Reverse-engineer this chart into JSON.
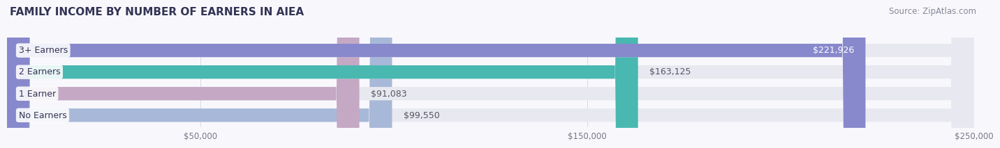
{
  "title": "FAMILY INCOME BY NUMBER OF EARNERS IN AIEA",
  "source": "Source: ZipAtlas.com",
  "categories": [
    "No Earners",
    "1 Earner",
    "2 Earners",
    "3+ Earners"
  ],
  "values": [
    99550,
    91083,
    163125,
    221926
  ],
  "bar_colors": [
    "#a8b8d8",
    "#c4a8c4",
    "#48b8b0",
    "#8888cc"
  ],
  "bar_bg_color": "#e8e8f0",
  "label_colors": [
    "#555566",
    "#555566",
    "#555566",
    "#ffffff"
  ],
  "xlim": [
    0,
    250000
  ],
  "xtick_values": [
    50000,
    150000,
    250000
  ],
  "xtick_labels": [
    "$50,000",
    "$150,000",
    "$250,000"
  ],
  "bg_color": "#f8f8fc",
  "title_color": "#333355",
  "title_fontsize": 11,
  "source_fontsize": 8.5,
  "bar_height": 0.62,
  "bar_label_fontsize": 9
}
